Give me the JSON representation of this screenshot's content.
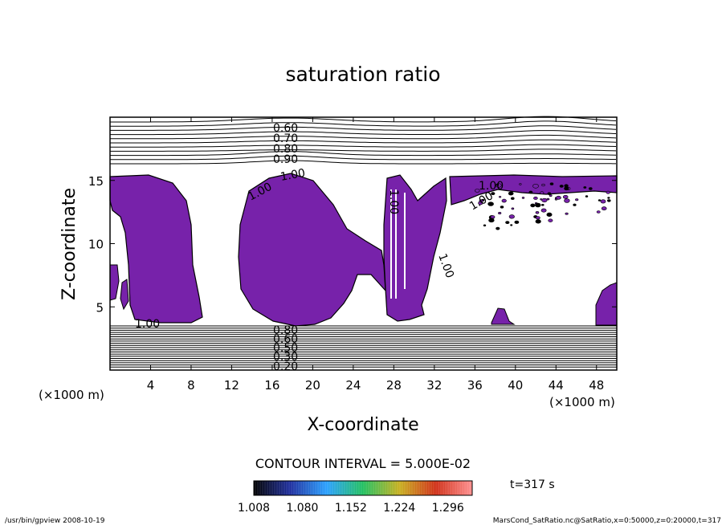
{
  "chart_data": {
    "type": "contour",
    "title": "saturation ratio",
    "xlabel": "X-coordinate",
    "ylabel": "Z-coordinate",
    "x_unit": "(×1000 m)",
    "z_unit": "(×1000 m)",
    "xlim": [
      0,
      50
    ],
    "ylim": [
      0,
      20
    ],
    "x_ticks": [
      4,
      8,
      12,
      16,
      20,
      24,
      28,
      32,
      36,
      40,
      44,
      48
    ],
    "z_ticks": [
      5,
      10,
      15
    ],
    "contour_interval_text": "CONTOUR INTERVAL = 5.000E-02",
    "upper_contour_labels": [
      "0.60",
      "0.70",
      "0.80",
      "0.90"
    ],
    "lower_contour_labels": [
      "0.80",
      "0.60",
      "0.50",
      "0.30",
      "0.20"
    ],
    "cloud_contour_labels": [
      "1.00",
      "1.00",
      "1.00",
      "1.00",
      "1.00",
      "1.00",
      "1.00"
    ],
    "colorbar": {
      "ticks": [
        "1.008",
        "1.080",
        "1.152",
        "1.224",
        "1.296"
      ],
      "range": [
        1.008,
        1.332
      ],
      "colors": [
        "#000000",
        "#1f2f9f",
        "#2aa0ff",
        "#22c060",
        "#c8b020",
        "#d03018",
        "#ff9090"
      ],
      "shade_color": "#7722aa"
    },
    "time_label": "t=317 s",
    "footer_left": "/usr/bin/gpview   2008-10-19",
    "footer_right": "MarsCond_SatRatio.nc@SatRatio,x=0:50000,z=0:20000,t=317"
  }
}
